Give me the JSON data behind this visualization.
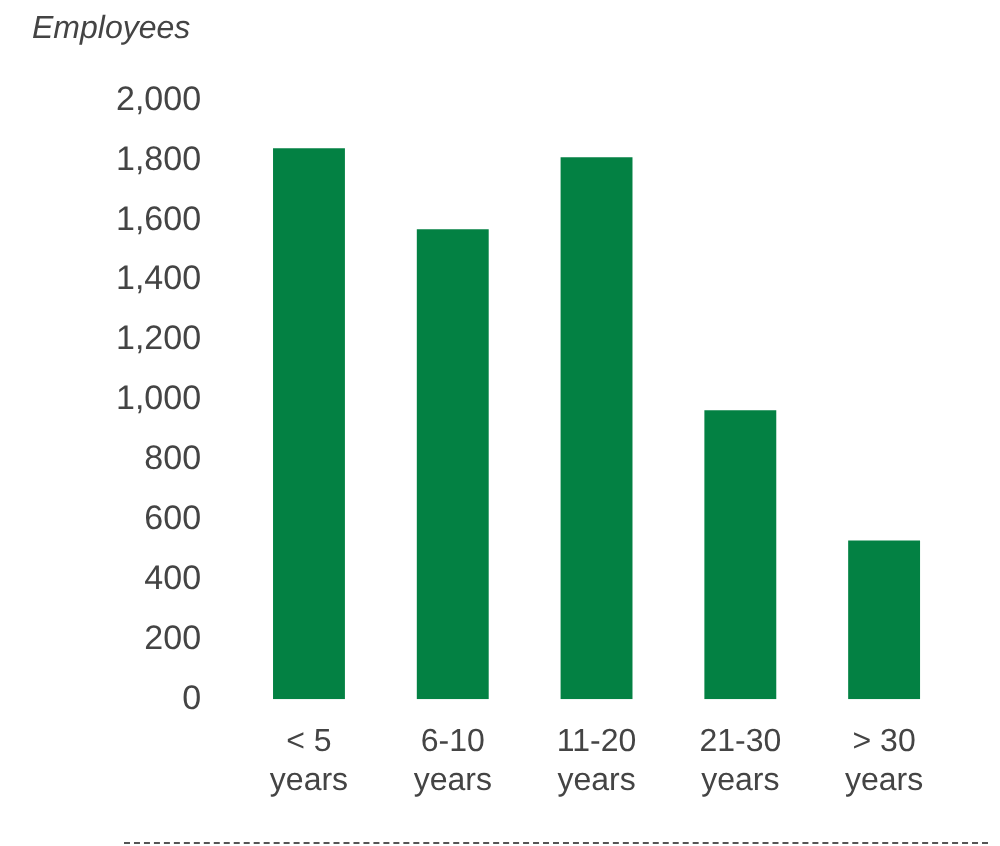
{
  "chart_data": {
    "type": "bar",
    "ylabel": "Employees",
    "categories": [
      "< 5\nyears",
      "6-10\nyears",
      "11-20\nyears",
      "21-30\nyears",
      "> 30\nyears"
    ],
    "values": [
      1840,
      1570,
      1810,
      965,
      530
    ],
    "color": "#038143",
    "ylim": [
      0,
      2000
    ],
    "yticks": [
      0,
      200,
      400,
      600,
      800,
      {
        "value": 1000,
        "label": "1,000"
      },
      {
        "value": 1200,
        "label": "1,200"
      },
      {
        "value": 1400,
        "label": "1,400"
      },
      {
        "value": 1600,
        "label": "1,600"
      },
      {
        "value": 1800,
        "label": "1,800"
      },
      {
        "value": 2000,
        "label": "2,000"
      }
    ],
    "grid": false,
    "legend": false
  }
}
